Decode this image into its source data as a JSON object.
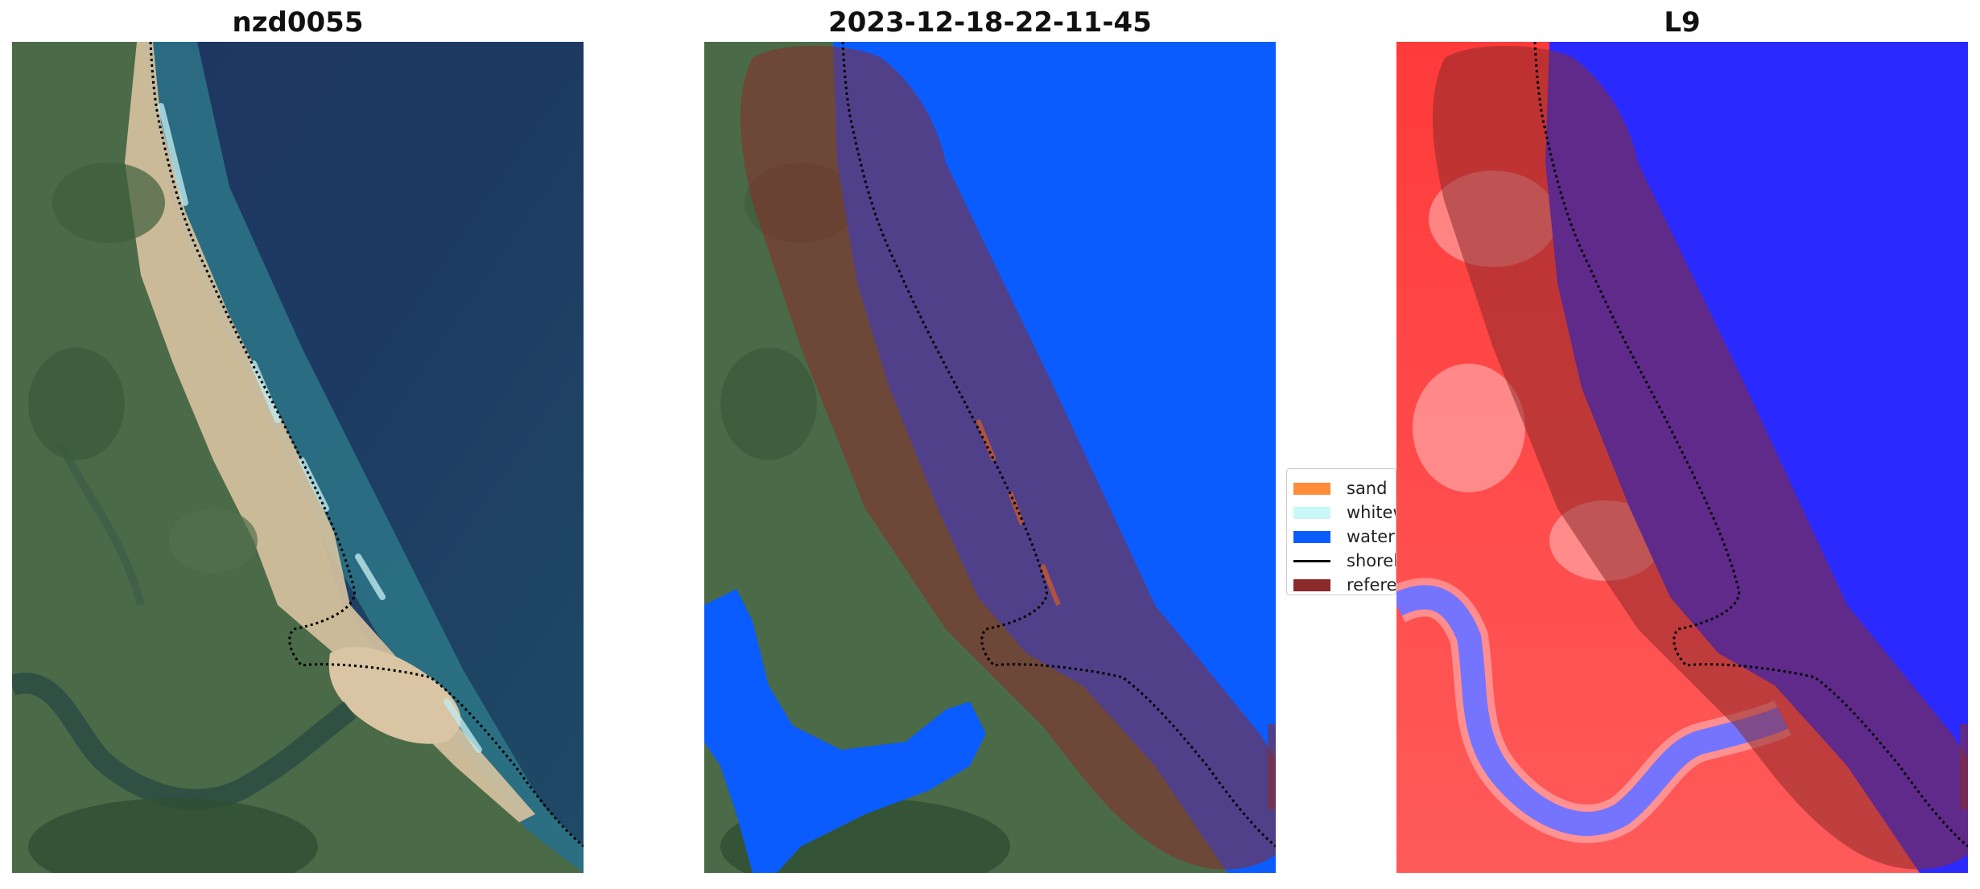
{
  "panels": [
    {
      "title": "nzd0055"
    },
    {
      "title": "2023-12-18-22-11-45"
    },
    {
      "title": "L9"
    }
  ],
  "legend": {
    "items": [
      {
        "label": "sand",
        "color": "#ff8c3a",
        "kind": "patch"
      },
      {
        "label": "whitewater",
        "color": "#c8f8f8",
        "kind": "patch"
      },
      {
        "label": "water",
        "color": "#0a5cff",
        "kind": "patch"
      },
      {
        "label": "shoreline",
        "color": "#000000",
        "kind": "line"
      },
      {
        "label": "reference shoreline buffer",
        "color": "#8b2a2a",
        "kind": "patch"
      }
    ]
  },
  "colors": {
    "ocean": "#1e3a5f",
    "land": "#4f6f4a",
    "beach": "#d6c2a0",
    "water_class": "#0a5cff",
    "buffer": "#8b2a2a",
    "index_red": "#ff4040",
    "index_blue": "#2a2aff"
  }
}
